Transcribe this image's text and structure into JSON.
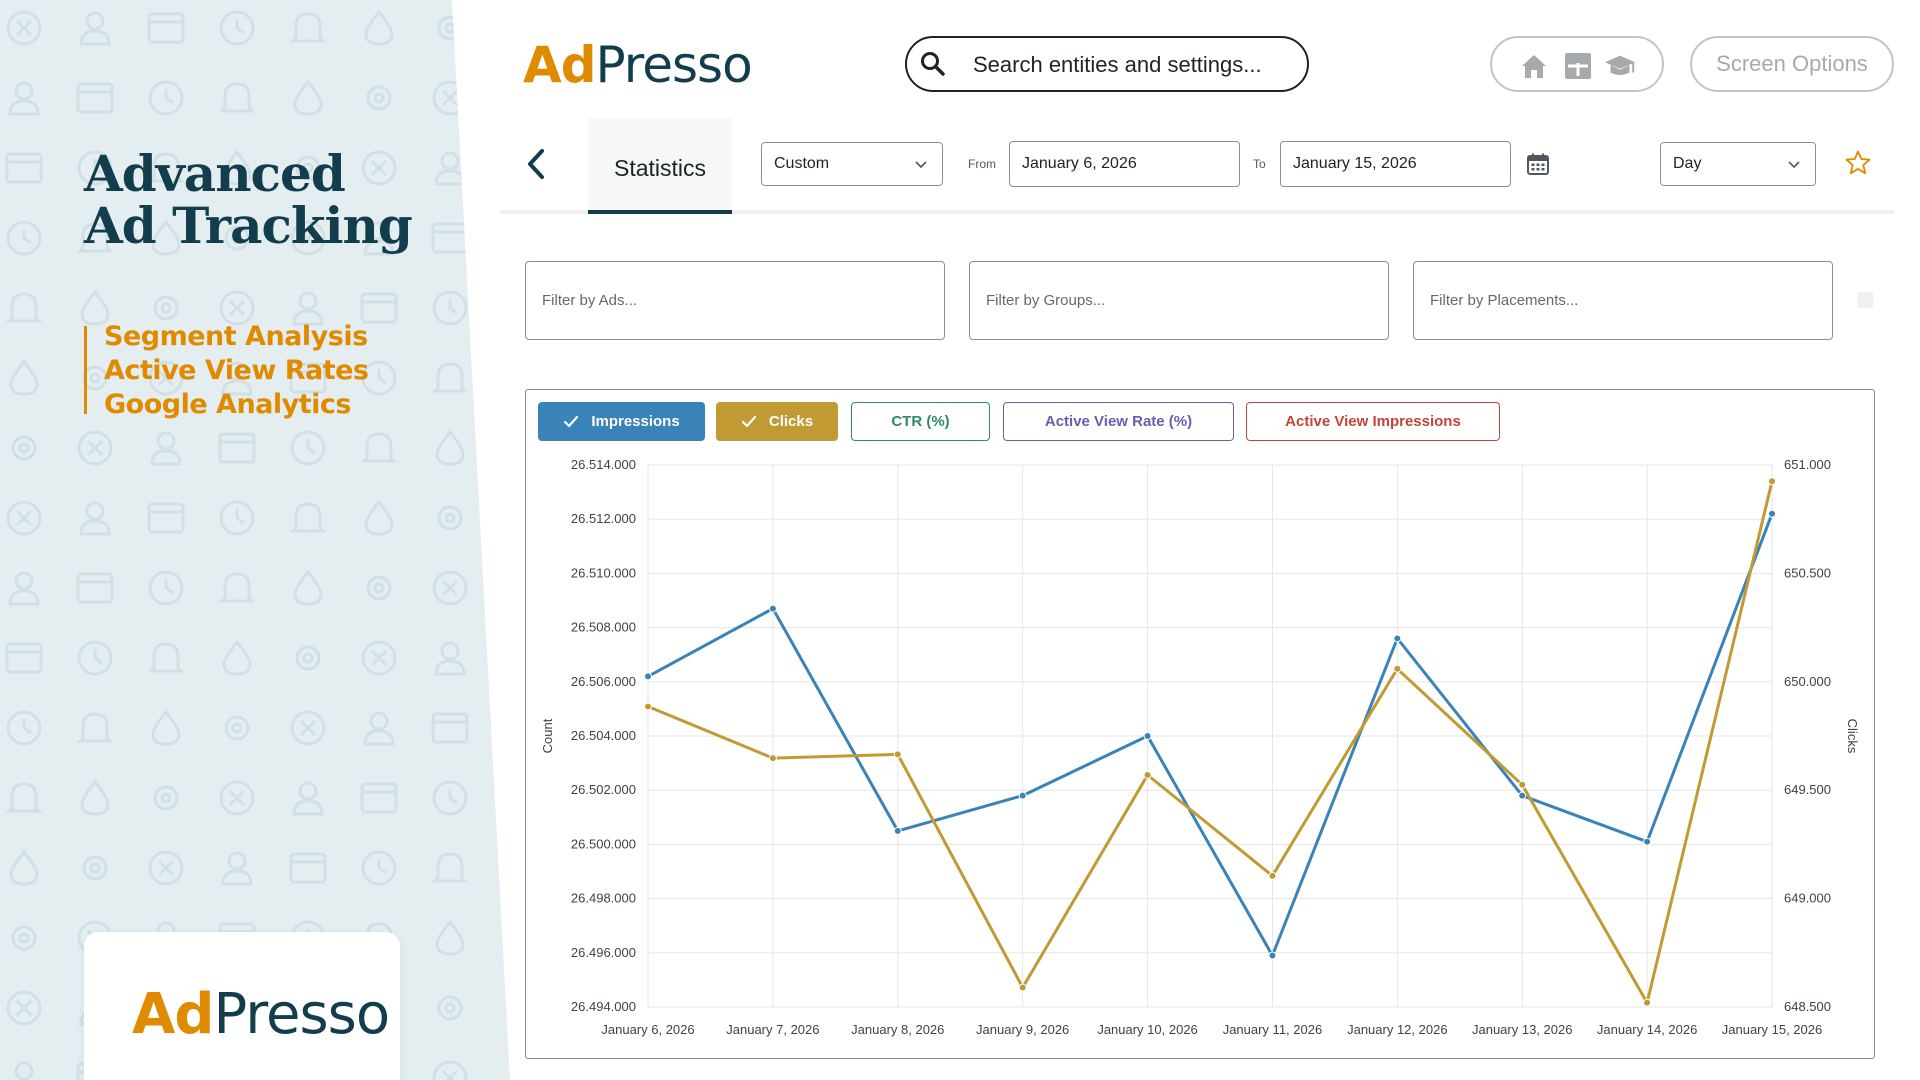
{
  "promo": {
    "title_line1": "Advanced",
    "title_line2": "Ad Tracking",
    "features": [
      "Segment Analysis",
      "Active View Rates",
      "Google Analytics"
    ],
    "logo_ad": "Ad",
    "logo_presso": "Presso"
  },
  "header": {
    "logo_ad": "Ad",
    "logo_presso": "Presso",
    "search_text": "Search entities and settings...",
    "quick_icons": [
      "home-icon",
      "plus-grid-icon",
      "graduation-cap-icon"
    ],
    "screen_options": "Screen Options"
  },
  "toolbar": {
    "back_icon": "chevron-left-icon",
    "tab_label": "Statistics",
    "range_preset": "Custom",
    "from_label": "From",
    "from_value": "January 6, 2026",
    "to_label": "To",
    "to_value": "January 15, 2026",
    "calendar_icon": "calendar-icon",
    "granularity": "Day",
    "favorite_icon": "star-icon"
  },
  "filters": {
    "ads_placeholder": "Filter by Ads...",
    "groups_placeholder": "Filter by Groups...",
    "placements_placeholder": "Filter by Placements..."
  },
  "metrics": [
    {
      "label": "Impressions",
      "active": true,
      "color": "#3a83b8"
    },
    {
      "label": "Clicks",
      "active": true,
      "color": "#c29a33"
    },
    {
      "label": "CTR (%)",
      "active": false,
      "color": "#2e8a6b"
    },
    {
      "label": "Active View Rate (%)",
      "active": false,
      "color": "#6b5cb0"
    },
    {
      "label": "Active View Impressions",
      "active": false,
      "color": "#c44536"
    }
  ],
  "chart_data": {
    "type": "line",
    "x": [
      "January 6, 2026",
      "January 7, 2026",
      "January 8, 2026",
      "January 9, 2026",
      "January 10, 2026",
      "January 11, 2026",
      "January 12, 2026",
      "January 13, 2026",
      "January 14, 2026",
      "January 15, 2026"
    ],
    "ylabel": "Count",
    "y2label": "Clicks",
    "ylim": [
      26494,
      26514
    ],
    "y2lim": [
      648500,
      651000
    ],
    "y_ticks": [
      "26.514.000",
      "26.512.000",
      "26.510.000",
      "26.508.000",
      "26.506.000",
      "26.504.000",
      "26.502.000",
      "26.500.000",
      "26.498.000",
      "26.496.000",
      "26.494.000"
    ],
    "y2_ticks": [
      "651.000",
      "650.500",
      "650.000",
      "649.500",
      "649.000",
      "648.500"
    ],
    "grid": true,
    "series": [
      {
        "name": "Impressions",
        "axis": "left",
        "color": "#3a83b8",
        "values": [
          26506.2,
          26508.7,
          26500.5,
          26501.8,
          26504.0,
          26495.9,
          26507.6,
          26501.8,
          26500.1,
          26512.2
        ]
      },
      {
        "name": "Clicks",
        "axis": "right",
        "color": "#c29a33",
        "values": [
          649886,
          649648,
          649665,
          648590,
          649570,
          649105,
          650060,
          649525,
          648520,
          650925
        ]
      }
    ]
  }
}
